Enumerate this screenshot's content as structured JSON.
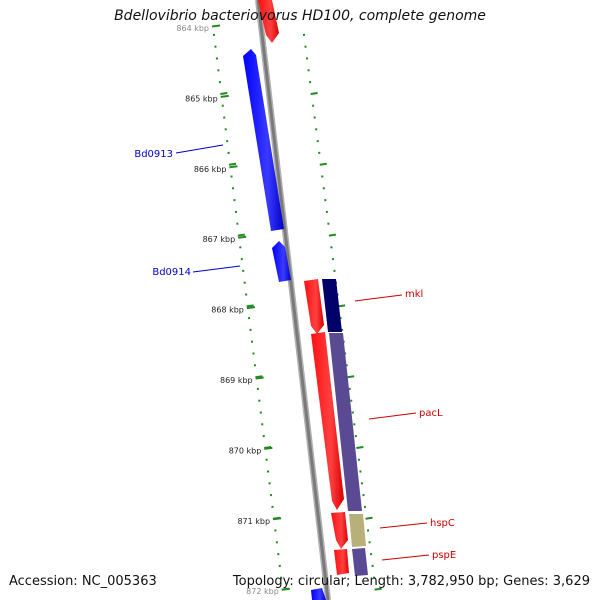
{
  "title": "Bdellovibrio bacteriovorus HD100, complete genome",
  "scale_labels": [
    "864 kbp",
    "865 kbp",
    "866 kbp",
    "867 kbp",
    "868 kbp",
    "869 kbp",
    "870 kbp",
    "871 kbp",
    "872 kbp"
  ],
  "gene_labels": [
    {
      "text": "Bd0913",
      "color": "#0000cc"
    },
    {
      "text": "Bd0914",
      "color": "#0000cc"
    },
    {
      "text": "mkl",
      "color": "#cc0000"
    },
    {
      "text": "pacL",
      "color": "#cc0000"
    },
    {
      "text": "hspC",
      "color": "#cc0000"
    },
    {
      "text": "pspE",
      "color": "#cc0000"
    }
  ],
  "colors": {
    "forward_cds": "#ff0000",
    "reverse_cds": "#0000ff",
    "dark_feature": "#00006b",
    "purple_feature": "#5a4a94",
    "khaki_feature": "#b8b07a",
    "backbone": "#888888",
    "ticks": "#228b22"
  },
  "footer": {
    "accession": "Accession: NC_005363",
    "topology": "Topology: circular; Length: 3,782,950 bp; Genes: 3,629"
  }
}
